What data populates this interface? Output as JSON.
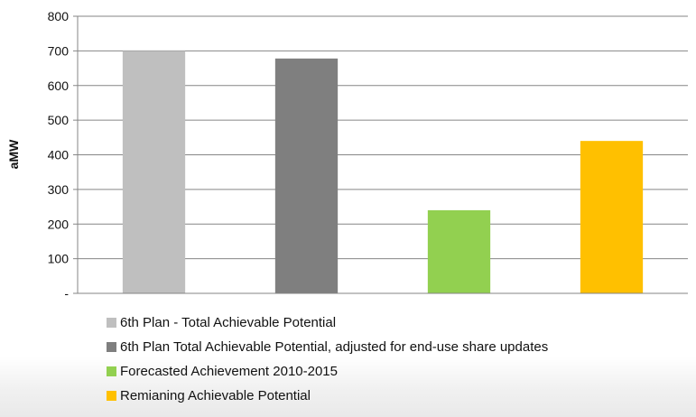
{
  "chart_data": {
    "type": "bar",
    "categories": [
      "6th Plan - Total Achievable Potential",
      "6th Plan Total Achievable Potential, adjusted for end-use share updates",
      "Forecasted Achievement 2010-2015",
      "Remianing Achievable Potential"
    ],
    "values": [
      700,
      678,
      240,
      440
    ],
    "colors": [
      "#bfbfbf",
      "#7f7f7f",
      "#92d050",
      "#ffc000"
    ],
    "ylabel": "aMW",
    "ylim": [
      0,
      800
    ],
    "yticks": [
      {
        "value": 0,
        "label": "-"
      },
      {
        "value": 100,
        "label": "100"
      },
      {
        "value": 200,
        "label": "200"
      },
      {
        "value": 300,
        "label": "300"
      },
      {
        "value": 400,
        "label": "400"
      },
      {
        "value": 500,
        "label": "500"
      },
      {
        "value": 600,
        "label": "600"
      },
      {
        "value": 700,
        "label": "700"
      },
      {
        "value": 800,
        "label": "800"
      }
    ],
    "grid": true,
    "legend_position": "bottom"
  }
}
